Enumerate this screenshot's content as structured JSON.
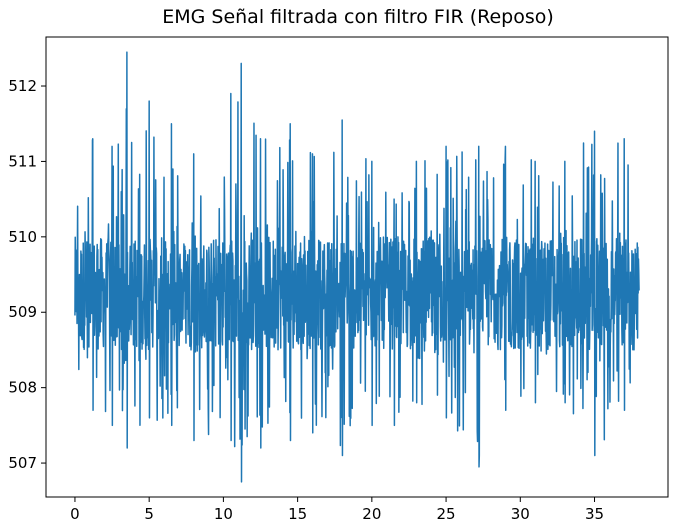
{
  "chart_data": {
    "type": "line",
    "title": "EMG Señal filtrada con filtro FIR (Reposo)",
    "xlabel": "",
    "ylabel": "",
    "xlim": [
      -1.95,
      39.95
    ],
    "ylim": [
      506.55,
      512.65
    ],
    "x_ticks": [
      0,
      5,
      10,
      15,
      20,
      25,
      30,
      35
    ],
    "y_ticks": [
      507,
      508,
      509,
      510,
      511,
      512
    ],
    "grid": false,
    "legend": "none",
    "series": [
      {
        "color": "#1f77b4",
        "approx_x_range": [
          0,
          38
        ],
        "sample_interval": 0.02,
        "signal_band": [
          508.5,
          510.0
        ],
        "envelope": [
          {
            "x": 0.0,
            "min": 508.2,
            "max": 510.5
          },
          {
            "x": 1.2,
            "min": 507.7,
            "max": 511.3
          },
          {
            "x": 2.5,
            "min": 507.5,
            "max": 511.2
          },
          {
            "x": 3.5,
            "min": 507.2,
            "max": 512.45
          },
          {
            "x": 5.0,
            "min": 507.6,
            "max": 511.8
          },
          {
            "x": 6.5,
            "min": 507.5,
            "max": 511.5
          },
          {
            "x": 8.0,
            "min": 507.3,
            "max": 511.1
          },
          {
            "x": 10.5,
            "min": 507.3,
            "max": 511.9
          },
          {
            "x": 11.2,
            "min": 506.75,
            "max": 512.3
          },
          {
            "x": 12.5,
            "min": 507.2,
            "max": 511.3
          },
          {
            "x": 14.5,
            "min": 507.3,
            "max": 511.5
          },
          {
            "x": 16.0,
            "min": 507.4,
            "max": 511.1
          },
          {
            "x": 18.0,
            "min": 507.1,
            "max": 511.55
          },
          {
            "x": 20.0,
            "min": 507.5,
            "max": 511.0
          },
          {
            "x": 21.5,
            "min": 507.5,
            "max": 510.5
          },
          {
            "x": 23.0,
            "min": 507.8,
            "max": 511.0
          },
          {
            "x": 25.0,
            "min": 507.6,
            "max": 511.2
          },
          {
            "x": 27.2,
            "min": 506.95,
            "max": 511.2
          },
          {
            "x": 29.0,
            "min": 507.7,
            "max": 511.2
          },
          {
            "x": 31.0,
            "min": 507.8,
            "max": 511.0
          },
          {
            "x": 33.0,
            "min": 507.8,
            "max": 511.0
          },
          {
            "x": 35.0,
            "min": 507.1,
            "max": 511.4
          },
          {
            "x": 37.0,
            "min": 507.7,
            "max": 511.3
          },
          {
            "x": 38.0,
            "min": 508.4,
            "max": 510.3
          }
        ]
      }
    ]
  }
}
